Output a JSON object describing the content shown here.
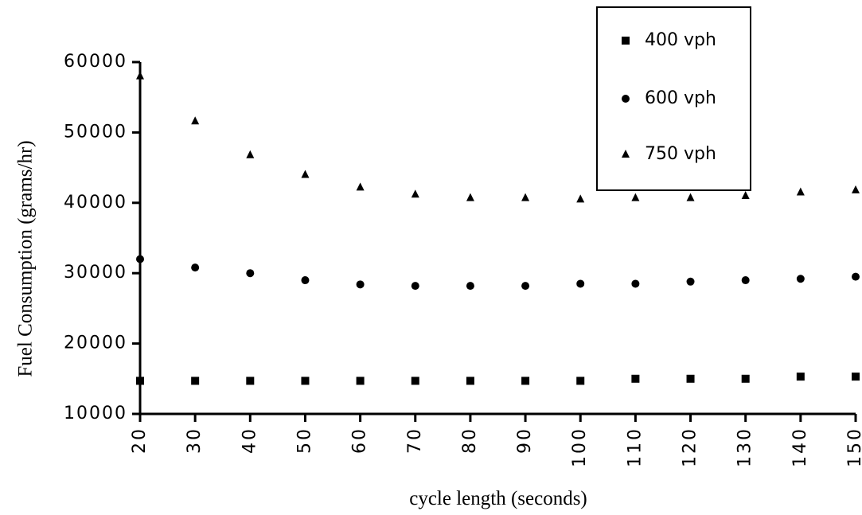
{
  "chart_data": {
    "type": "scatter",
    "title": "",
    "xlabel": "cycle length (seconds)",
    "ylabel": "Fuel Consumption (grams/hr)",
    "x": [
      20,
      30,
      40,
      50,
      60,
      70,
      80,
      90,
      100,
      110,
      120,
      130,
      140,
      150
    ],
    "xticks": [
      "20",
      "30",
      "40",
      "50",
      "60",
      "70",
      "80",
      "90",
      "100",
      "110",
      "120",
      "130",
      "140",
      "150"
    ],
    "yticks": [
      "10000",
      "20000",
      "30000",
      "40000",
      "50000",
      "60000"
    ],
    "xlim": [
      20,
      150
    ],
    "ylim": [
      10000,
      60000
    ],
    "grid": false,
    "legend_position": "top-right",
    "series": [
      {
        "name": "400 vph",
        "marker": "square",
        "values": [
          14700,
          14700,
          14700,
          14700,
          14700,
          14700,
          14700,
          14700,
          14700,
          15000,
          15000,
          15000,
          15300,
          15300
        ]
      },
      {
        "name": "600 vph",
        "marker": "circle",
        "values": [
          32000,
          30800,
          30000,
          29000,
          28400,
          28200,
          28200,
          28200,
          28500,
          28500,
          28800,
          29000,
          29200,
          29500
        ]
      },
      {
        "name": "750 vph",
        "marker": "triangle",
        "values": [
          58000,
          51600,
          46800,
          44000,
          42200,
          41200,
          40700,
          40700,
          40500,
          40700,
          40700,
          41000,
          41500,
          41800
        ]
      }
    ]
  }
}
